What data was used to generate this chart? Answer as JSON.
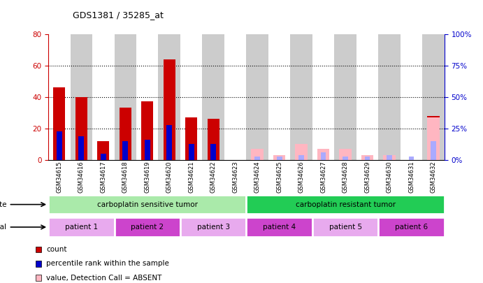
{
  "title": "GDS1381 / 35285_at",
  "samples": [
    "GSM34615",
    "GSM34616",
    "GSM34617",
    "GSM34618",
    "GSM34619",
    "GSM34620",
    "GSM34621",
    "GSM34622",
    "GSM34623",
    "GSM34624",
    "GSM34625",
    "GSM34626",
    "GSM34627",
    "GSM34628",
    "GSM34629",
    "GSM34630",
    "GSM34631",
    "GSM34632"
  ],
  "count_values": [
    46,
    40,
    12,
    33,
    37,
    64,
    27,
    26,
    0,
    0,
    0,
    0,
    0,
    0,
    0,
    0,
    0,
    28
  ],
  "percentile_values": [
    18,
    15,
    4,
    12,
    13,
    22,
    10,
    10,
    0,
    0,
    0,
    0,
    0,
    0,
    0,
    0,
    0,
    11
  ],
  "absent_value": [
    0,
    0,
    0,
    0,
    0,
    0,
    0,
    0,
    0,
    7,
    3,
    10,
    7,
    7,
    3,
    3,
    0,
    27
  ],
  "absent_rank": [
    0,
    0,
    0,
    0,
    0,
    0,
    0,
    0,
    0,
    2,
    2,
    3,
    5,
    2,
    2,
    3,
    2,
    12
  ],
  "left_ylim": [
    0,
    80
  ],
  "right_ylim": [
    0,
    100
  ],
  "left_yticks": [
    0,
    20,
    40,
    60,
    80
  ],
  "right_yticks": [
    0,
    25,
    50,
    75,
    100
  ],
  "disease_state_groups": [
    {
      "label": "carboplatin sensitive tumor",
      "start": 0,
      "end": 9,
      "color": "#aaeaaa"
    },
    {
      "label": "carboplatin resistant tumor",
      "start": 9,
      "end": 18,
      "color": "#22cc55"
    }
  ],
  "individual_groups": [
    {
      "label": "patient 1",
      "start": 0,
      "end": 3,
      "color": "#e8aaee"
    },
    {
      "label": "patient 2",
      "start": 3,
      "end": 6,
      "color": "#cc44cc"
    },
    {
      "label": "patient 3",
      "start": 6,
      "end": 9,
      "color": "#e8aaee"
    },
    {
      "label": "patient 4",
      "start": 9,
      "end": 12,
      "color": "#cc44cc"
    },
    {
      "label": "patient 5",
      "start": 12,
      "end": 15,
      "color": "#e8aaee"
    },
    {
      "label": "patient 6",
      "start": 15,
      "end": 18,
      "color": "#cc44cc"
    }
  ],
  "bar_width": 0.55,
  "count_color": "#CC0000",
  "percentile_color": "#0000CC",
  "absent_value_color": "#FFB6C1",
  "absent_rank_color": "#AAAAFF",
  "left_axis_color": "#CC0000",
  "right_axis_color": "#0000CC",
  "alternating_bg": [
    "#FFFFFF",
    "#CCCCCC"
  ]
}
